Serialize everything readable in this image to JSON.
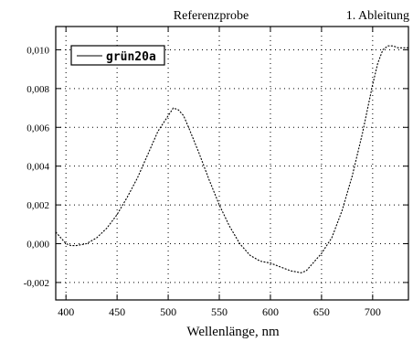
{
  "chart_data": {
    "type": "line",
    "title": "Referenzprobe",
    "subtitle": "1. Ableitung",
    "xlabel": "Wellenlänge, nm",
    "ylabel": "",
    "xlim": [
      390,
      735
    ],
    "ylim": [
      -0.0029,
      0.0112
    ],
    "xticks": [
      400,
      450,
      500,
      550,
      600,
      650,
      700
    ],
    "xtick_labels": [
      "400",
      "450",
      "500",
      "550",
      "600",
      "650",
      "700"
    ],
    "yticks": [
      -0.002,
      0.0,
      0.002,
      0.004,
      0.006,
      0.008,
      0.01
    ],
    "ytick_labels": [
      "-0,002",
      "0,000",
      "0,002",
      "0,004",
      "0,006",
      "0,008",
      "0,010"
    ],
    "legend": {
      "position": "top-left"
    },
    "grid": "dotted",
    "series": [
      {
        "name": "grün20a",
        "color": "#000000",
        "x": [
          390,
          395,
          400,
          405,
          410,
          420,
          430,
          440,
          450,
          460,
          470,
          480,
          490,
          500,
          505,
          510,
          515,
          520,
          530,
          540,
          550,
          560,
          570,
          580,
          590,
          600,
          610,
          620,
          630,
          635,
          640,
          650,
          660,
          670,
          680,
          690,
          700,
          705,
          710,
          715,
          720,
          725,
          730,
          735
        ],
        "y": [
          0.0006,
          0.0003,
          0.0,
          -0.0001,
          -0.0001,
          0.0,
          0.0003,
          0.0008,
          0.0015,
          0.0024,
          0.0034,
          0.0046,
          0.0058,
          0.0066,
          0.007,
          0.0069,
          0.0066,
          0.006,
          0.0047,
          0.0033,
          0.002,
          0.0009,
          0.0,
          -0.0006,
          -0.0009,
          -0.001,
          -0.0012,
          -0.0014,
          -0.0015,
          -0.0014,
          -0.0011,
          -0.0005,
          0.0003,
          0.0017,
          0.0035,
          0.0057,
          0.0082,
          0.0093,
          0.01,
          0.0102,
          0.0102,
          0.0101,
          0.0101,
          0.0101
        ]
      }
    ]
  }
}
